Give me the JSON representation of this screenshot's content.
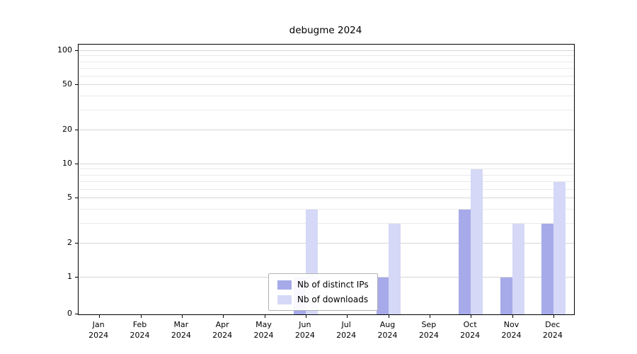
{
  "chart_data": {
    "type": "bar",
    "title": "debugme 2024",
    "categories": [
      "Jan 2024",
      "Feb 2024",
      "Mar 2024",
      "Apr 2024",
      "May 2024",
      "Jun 2024",
      "Jul 2024",
      "Aug 2024",
      "Sep 2024",
      "Oct 2024",
      "Nov 2024",
      "Dec 2024"
    ],
    "series": [
      {
        "name": "Nb of distinct IPs",
        "color": "#a6aae9",
        "values": [
          0,
          0,
          0,
          0,
          0,
          1,
          0,
          1,
          0,
          4,
          1,
          3
        ]
      },
      {
        "name": "Nb of downloads",
        "color": "#d5d8f6",
        "values": [
          0,
          0,
          0,
          0,
          0,
          4,
          0,
          3,
          0,
          9,
          3,
          7
        ]
      }
    ],
    "y_ticks": [
      0,
      1,
      2,
      5,
      10,
      20,
      50,
      100
    ],
    "y_minor_ticks": [
      3,
      4,
      6,
      7,
      8,
      9,
      30,
      40,
      60,
      70,
      80,
      90
    ],
    "scale": "symlog",
    "ylim": [
      0,
      114
    ],
    "xlabel": "",
    "ylabel": "",
    "grid": true,
    "legend_position": "lower center"
  }
}
